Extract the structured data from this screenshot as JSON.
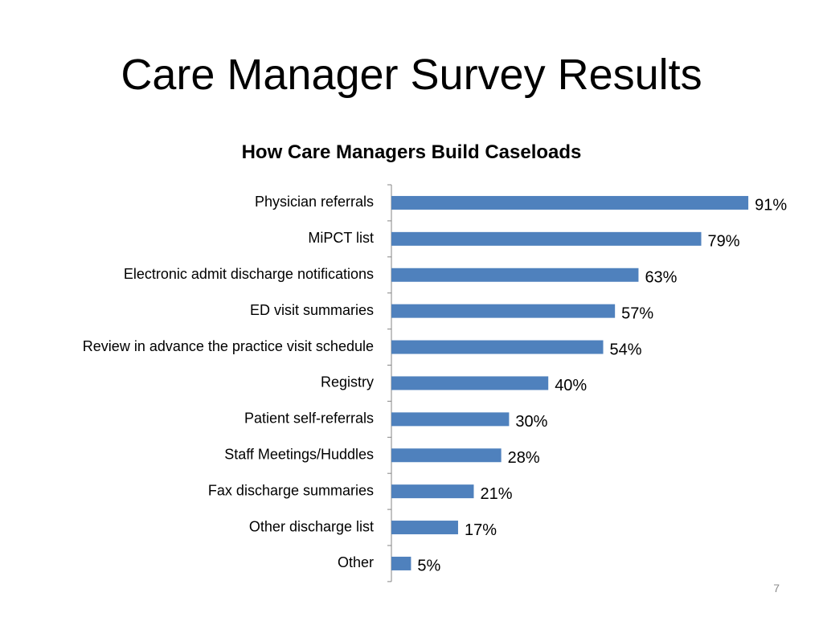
{
  "slide": {
    "title": "Care Manager Survey Results",
    "number": "7"
  },
  "chart_data": {
    "type": "bar",
    "orientation": "horizontal",
    "title": "How Care Managers Build Caseloads",
    "categories": [
      "Physician referrals",
      "MiPCT list",
      "Electronic admit discharge notifications",
      "ED visit summaries",
      "Review in advance the practice visit schedule",
      "Registry",
      "Patient self-referrals",
      "Staff Meetings/Huddles",
      "Fax discharge summaries",
      "Other discharge list",
      "Other"
    ],
    "values": [
      91,
      79,
      63,
      57,
      54,
      40,
      30,
      28,
      21,
      17,
      5
    ],
    "value_labels": [
      "91%",
      "79%",
      "63%",
      "57%",
      "54%",
      "40%",
      "30%",
      "28%",
      "21%",
      "17%",
      "5%"
    ],
    "xlim": [
      0,
      100
    ],
    "grid": false,
    "legend": "none",
    "colors": {
      "bar": "#4f81bd",
      "axis": "#868686"
    }
  }
}
